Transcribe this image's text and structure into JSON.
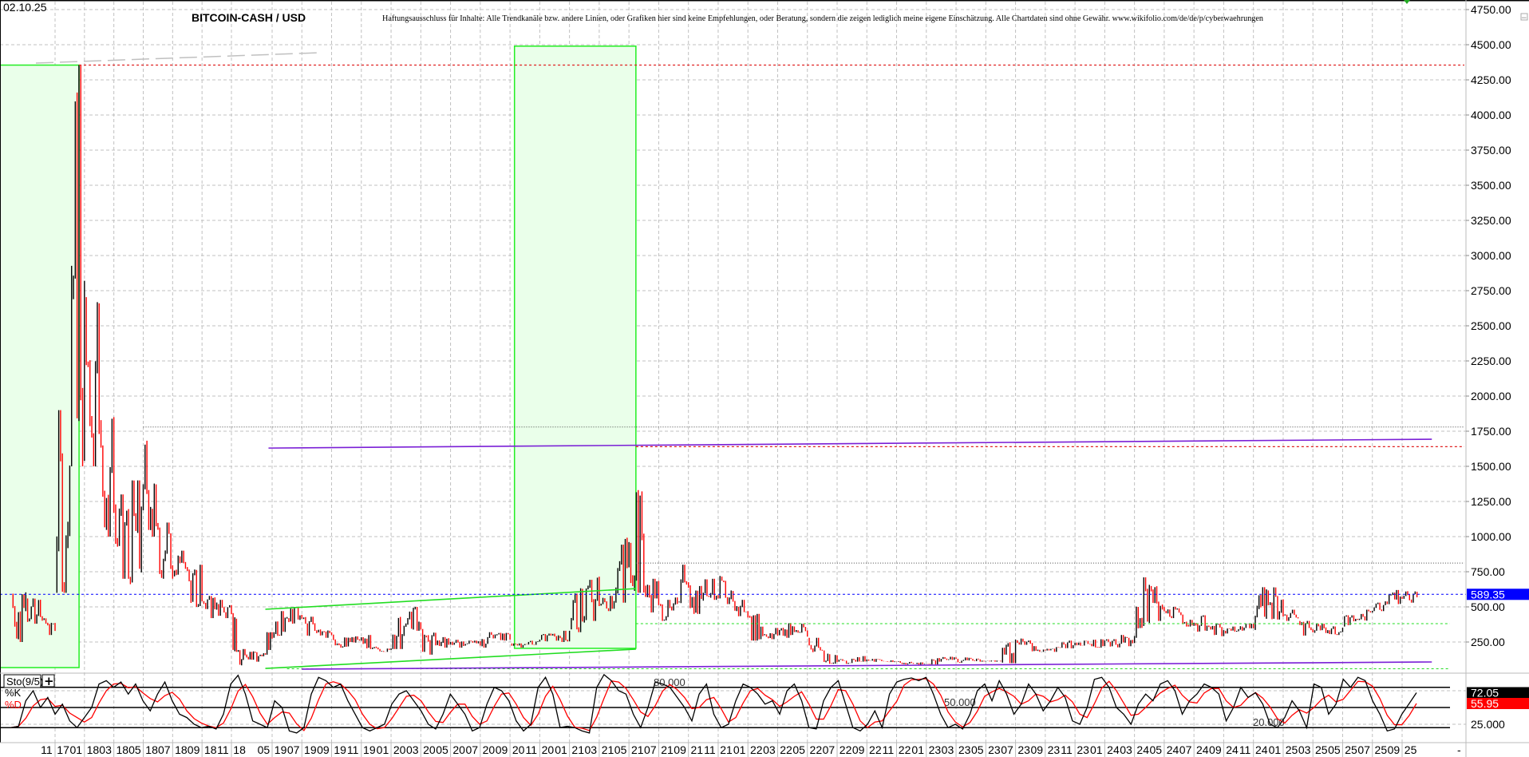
{
  "header": {
    "date": "02.10.25",
    "title": "BITCOIN-CASH / USD",
    "disclaimer": "Haftungsausschluss für Inhalte: Alle Trendkanäle bzw. andere Linien, oder Grafiken hier sind keine Empfehlungen, oder Beratung, sondern die zeigen lediglich meine eigene Einschätzung. Alle Chartdaten sind ohne Gewähr.  www.wikifolio.com/de/de/p/cyberwaehrungen"
  },
  "colors": {
    "up_bar": "#000000",
    "down_bar": "#ff0000",
    "grid": "#c0c0c0",
    "box_fill": "#eaffea",
    "box_border": "#22ee22",
    "resistance": "#e02020",
    "trend_purple": "#7a1fd6",
    "last_price": "#0000ff",
    "sto_k": "#000000",
    "sto_d": "#ff0000"
  },
  "chart_data": [
    {
      "type": "line",
      "title": "BITCOIN-CASH / USD",
      "ylim": [
        0,
        4850
      ],
      "grid": true,
      "y_ticks": [
        "4750.00",
        "4500.00",
        "4250.00",
        "4000.00",
        "3750.00",
        "3500.00",
        "3250.00",
        "3000.00",
        "2750.00",
        "2500.00",
        "2250.00",
        "2000.00",
        "1750.00",
        "1500.00",
        "1250.00",
        "1000.00",
        "750.00",
        "500.00",
        "250.00"
      ],
      "last_price": "589.35",
      "ohlc_monthly_columns": [
        "month",
        "high",
        "low",
        "close"
      ],
      "ohlc_monthly": [
        [
          "2017-08",
          750,
          250,
          580
        ],
        [
          "2017-09",
          560,
          380,
          430
        ],
        [
          "2017-10",
          480,
          300,
          330
        ],
        [
          "2017-11",
          1900,
          600,
          1500
        ],
        [
          "2017-12",
          4355,
          1500,
          2700
        ],
        [
          "2018-01",
          3000,
          1500,
          1800
        ],
        [
          "2018-02",
          1900,
          1000,
          1200
        ],
        [
          "2018-03",
          1300,
          700,
          700
        ],
        [
          "2018-04",
          1400,
          640,
          1350
        ],
        [
          "2018-05",
          1780,
          1000,
          1050
        ],
        [
          "2018-06",
          1100,
          700,
          720
        ],
        [
          "2018-07",
          900,
          700,
          760
        ],
        [
          "2018-08",
          800,
          500,
          540
        ],
        [
          "2018-09",
          650,
          420,
          520
        ],
        [
          "2018-10",
          550,
          420,
          450
        ],
        [
          "2018-11",
          620,
          180,
          190
        ],
        [
          "2018-12",
          200,
          75,
          160
        ],
        [
          "2019-01",
          180,
          110,
          125
        ],
        [
          "2019-02",
          200,
          110,
          150
        ],
        [
          "2019-03",
          170,
          130,
          160
        ],
        [
          "2019-04",
          320,
          160,
          280
        ],
        [
          "2019-05",
          470,
          280,
          420
        ],
        [
          "2019-06",
          500,
          380,
          420
        ],
        [
          "2019-07",
          430,
          280,
          320
        ],
        [
          "2019-08",
          340,
          280,
          300
        ],
        [
          "2019-09",
          330,
          210,
          220
        ],
        [
          "2019-10",
          290,
          210,
          280
        ],
        [
          "2019-11",
          300,
          200,
          210
        ],
        [
          "2019-12",
          220,
          180,
          205
        ],
        [
          "2020-01",
          450,
          200,
          380
        ],
        [
          "2020-02",
          500,
          330,
          340
        ],
        [
          "2020-03",
          350,
          160,
          230
        ],
        [
          "2020-04",
          290,
          210,
          250
        ],
        [
          "2020-05",
          280,
          210,
          235
        ],
        [
          "2020-06",
          260,
          220,
          225
        ],
        [
          "2020-07",
          320,
          210,
          300
        ],
        [
          "2020-08",
          320,
          260,
          270
        ],
        [
          "2020-09",
          240,
          210,
          235
        ],
        [
          "2020-10",
          270,
          230,
          265
        ],
        [
          "2020-11",
          310,
          250,
          290
        ],
        [
          "2020-12",
          330,
          250,
          340
        ],
        [
          "2021-01",
          650,
          320,
          420
        ],
        [
          "2021-02",
          760,
          400,
          510
        ],
        [
          "2021-03",
          580,
          470,
          540
        ],
        [
          "2021-04",
          1000,
          530,
          950
        ],
        [
          "2021-05",
          1640,
          600,
          650
        ],
        [
          "2021-06",
          700,
          460,
          520
        ],
        [
          "2021-07",
          550,
          400,
          520
        ],
        [
          "2021-08",
          800,
          500,
          640
        ],
        [
          "2021-09",
          760,
          450,
          600
        ],
        [
          "2021-10",
          700,
          550,
          560
        ],
        [
          "2021-11",
          720,
          520,
          540
        ],
        [
          "2021-12",
          550,
          400,
          430
        ],
        [
          "2022-01",
          450,
          260,
          300
        ],
        [
          "2022-02",
          350,
          270,
          300
        ],
        [
          "2022-03",
          390,
          280,
          360
        ],
        [
          "2022-04",
          380,
          280,
          290
        ],
        [
          "2022-05",
          280,
          170,
          190
        ],
        [
          "2022-06",
          190,
          95,
          110
        ],
        [
          "2022-07",
          140,
          95,
          130
        ],
        [
          "2022-08",
          150,
          110,
          125
        ],
        [
          "2022-09",
          130,
          105,
          115
        ],
        [
          "2022-10",
          120,
          105,
          110
        ],
        [
          "2022-11",
          120,
          90,
          100
        ],
        [
          "2022-12",
          105,
          85,
          95
        ],
        [
          "2023-01",
          140,
          90,
          130
        ],
        [
          "2023-02",
          145,
          120,
          130
        ],
        [
          "2023-03",
          140,
          100,
          130
        ],
        [
          "2023-04",
          135,
          110,
          115
        ],
        [
          "2023-05",
          120,
          110,
          112
        ],
        [
          "2023-06",
          300,
          100,
          260
        ],
        [
          "2023-07",
          300,
          230,
          240
        ],
        [
          "2023-08",
          250,
          180,
          190
        ],
        [
          "2023-09",
          220,
          180,
          210
        ],
        [
          "2023-10",
          260,
          205,
          245
        ],
        [
          "2023-11",
          260,
          220,
          235
        ],
        [
          "2023-12",
          270,
          210,
          260
        ],
        [
          "2024-01",
          270,
          210,
          240
        ],
        [
          "2024-02",
          300,
          220,
          290
        ],
        [
          "2024-03",
          710,
          280,
          640
        ],
        [
          "2024-04",
          650,
          400,
          470
        ],
        [
          "2024-05",
          500,
          420,
          460
        ],
        [
          "2024-06",
          520,
          360,
          380
        ],
        [
          "2024-07",
          440,
          320,
          360
        ],
        [
          "2024-08",
          380,
          290,
          330
        ],
        [
          "2024-09",
          360,
          300,
          340
        ],
        [
          "2024-10",
          380,
          320,
          350
        ],
        [
          "2024-11",
          640,
          330,
          520
        ],
        [
          "2024-12",
          640,
          410,
          440
        ],
        [
          "2025-01",
          480,
          400,
          420
        ],
        [
          "2025-02",
          400,
          280,
          320
        ],
        [
          "2025-03",
          380,
          280,
          330
        ],
        [
          "2025-04",
          380,
          300,
          350
        ],
        [
          "2025-05",
          440,
          360,
          410
        ],
        [
          "2025-06",
          480,
          400,
          470
        ],
        [
          "2025-07",
          540,
          470,
          520
        ],
        [
          "2025-08",
          620,
          510,
          560
        ],
        [
          "2025-09",
          620,
          530,
          570
        ],
        [
          "2025-10",
          595,
          570,
          589.35
        ]
      ],
      "drawings": {
        "green_boxes": [
          {
            "from": "2017-08",
            "to": "2017-12-20",
            "top": 4355,
            "bottom": 68
          },
          {
            "from": "2020-09-10",
            "to": "2021-05-15",
            "top": 4490,
            "bottom": 205
          }
        ],
        "red_dotted_levels": [
          {
            "price": 4355,
            "from": "2017-12-20"
          },
          {
            "price": 1640,
            "from": "2021-05-15"
          }
        ],
        "black_dotted_levels": [
          {
            "price": 1780,
            "from": "2018-05-01"
          },
          {
            "price": 812,
            "from": "2021-05-15"
          }
        ],
        "green_dotted_levels": [
          {
            "price": 381,
            "from": "2021-05-15"
          },
          {
            "price": 60,
            "from": "2019-06-01"
          }
        ],
        "purple_lines": [
          {
            "from": [
              "2019-04-15",
              1630
            ],
            "to": [
              "2025-10-31",
              1693
            ]
          },
          {
            "from": [
              "2019-07-01",
              57
            ],
            "to": [
              "2025-10-31",
              108
            ]
          }
        ],
        "green_trend_lines": [
          {
            "from": [
              "2019-04-01",
              483
            ],
            "to": [
              "2021-05-15",
              630
            ]
          },
          {
            "from": [
              "2019-04-01",
              62
            ],
            "to": [
              "2021-05-15",
              199
            ]
          }
        ]
      }
    },
    {
      "type": "line",
      "title": "Sto(9/5)",
      "ylim": [
        0,
        100
      ],
      "series": [
        {
          "name": "%K"
        },
        {
          "name": "%D"
        }
      ],
      "levels": [
        {
          "value": 80,
          "label": "80.000"
        },
        {
          "value": 50,
          "label": "50.000"
        },
        {
          "value": 20,
          "label": "20.000"
        }
      ],
      "axis_label": "25.000",
      "last_k": "72.05",
      "last_d": "55.95",
      "k_values": [
        20,
        22,
        60,
        75,
        50,
        65,
        40,
        55,
        30,
        20,
        35,
        50,
        85,
        90,
        80,
        88,
        70,
        85,
        60,
        45,
        70,
        88,
        60,
        40,
        35,
        25,
        20,
        22,
        18,
        40,
        85,
        98,
        70,
        30,
        25,
        20,
        60,
        50,
        15,
        12,
        20,
        70,
        95,
        90,
        80,
        85,
        60,
        40,
        20,
        15,
        20,
        25,
        55,
        70,
        75,
        60,
        45,
        25,
        18,
        40,
        70,
        55,
        40,
        15,
        20,
        55,
        80,
        75,
        60,
        30,
        15,
        25,
        80,
        95,
        70,
        20,
        22,
        20,
        15,
        12,
        80,
        99,
        90,
        75,
        70,
        40,
        20,
        50,
        88,
        85,
        80,
        65,
        50,
        30,
        70,
        85,
        40,
        20,
        25,
        60,
        85,
        80,
        70,
        55,
        60,
        40,
        75,
        85,
        60,
        20,
        18,
        60,
        80,
        90,
        55,
        20,
        15,
        25,
        45,
        20,
        70,
        88,
        92,
        94,
        90,
        95,
        70,
        40,
        20,
        25,
        18,
        40,
        75,
        85,
        60,
        90,
        70,
        40,
        55,
        85,
        70,
        45,
        60,
        80,
        65,
        30,
        25,
        50,
        92,
        95,
        80,
        50,
        40,
        25,
        55,
        70,
        60,
        85,
        90,
        75,
        40,
        60,
        70,
        85,
        80,
        70,
        30,
        50,
        80,
        65,
        72,
        55,
        25,
        20,
        35,
        60,
        45,
        20,
        85,
        80,
        40,
        55,
        92,
        80,
        95,
        90,
        60,
        40,
        15,
        18,
        40,
        55.8,
        72.05
      ]
    }
  ],
  "x_ticks": [
    "11 17",
    "01 18",
    "03 18",
    "05 18",
    "07 18",
    "09 18",
    "11 18",
    "05 19",
    "07 19",
    "09 19",
    "11 19",
    "01 20",
    "03 20",
    "05 20",
    "07 20",
    "09 20",
    "11 20",
    "01 21",
    "03 21",
    "05 21",
    "07 21",
    "09 21",
    "11 21",
    "01 22",
    "03 22",
    "05 22",
    "07 22",
    "09 22",
    "11 22",
    "01 23",
    "03 23",
    "05 23",
    "07 23",
    "09 23",
    "11 23",
    "01 24",
    "03 24",
    "05 24",
    "07 24",
    "09 24",
    "11 24",
    "01 25",
    "03 25",
    "05 25",
    "07 25",
    "09 25"
  ],
  "controls": {
    "collapse": "−",
    "axis_dash": "-",
    "indicator_add": "+"
  }
}
